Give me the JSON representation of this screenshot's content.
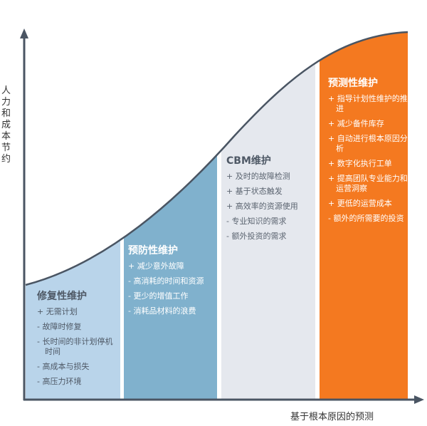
{
  "axes": {
    "y_label": "人力和成本节约",
    "x_label": "基于根本原因的预测"
  },
  "colors": {
    "reactive": "#b9d4ea",
    "preventive": "#80b1cd",
    "cbm": "#e5e8ee",
    "predictive": "#f47920",
    "axis": "#4a5563"
  },
  "columns": [
    {
      "title": "修复性维护",
      "items": [
        "+ 无需计划",
        "- 故障时修复",
        "- 长时间的非计划停机时间",
        "- 高成本与损失",
        "- 高压力环境"
      ]
    },
    {
      "title": "预防性维护",
      "items": [
        "+ 减少意外故障",
        "- 高消耗的时间和资源",
        "- 更少的增值工作",
        "- 消耗品材料的浪费"
      ]
    },
    {
      "title": "CBM维护",
      "items": [
        "+ 及时的故障检测",
        "+ 基于状态触发",
        "+ 高效率的资源使用",
        "- 专业知识的需求",
        "- 额外投资的需求"
      ]
    },
    {
      "title": "预测性维护",
      "items": [
        "+ 指导计划性维护的推进",
        "+ 减少备件库存",
        "+ 自动进行根本原因分析",
        "+ 数字化执行工单",
        "+ 提高团队专业能力和运营洞察",
        "+ 更低的运营成本",
        "- 额外的所需要的投资"
      ]
    }
  ]
}
